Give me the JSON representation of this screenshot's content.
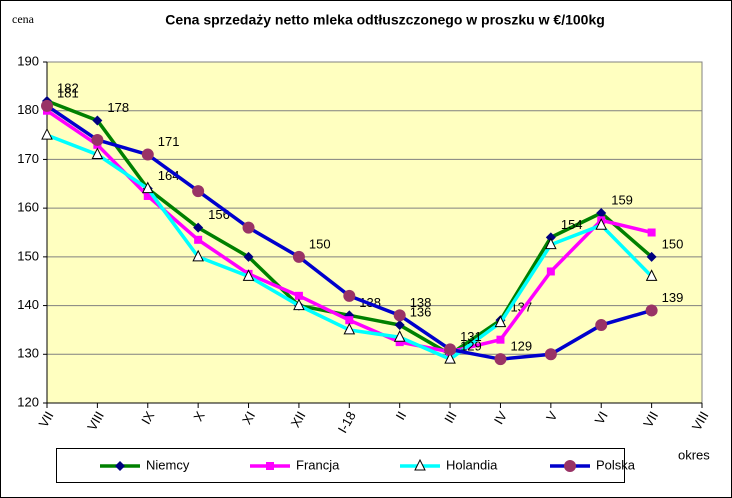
{
  "chart_data": {
    "type": "line",
    "title": "Cena sprzedaży netto mleka odtłuszczonego w proszku w €/100kg",
    "y_label": "cena",
    "x_label": "okres",
    "categories": [
      "VII",
      "VIII",
      "IX",
      "X",
      "XI",
      "XII",
      "I-18",
      "II",
      "III",
      "IV",
      "V",
      "VI",
      "VII",
      "VIII"
    ],
    "ylim": [
      120,
      190
    ],
    "yticks": [
      120,
      130,
      140,
      150,
      160,
      170,
      180,
      190
    ],
    "grid": true,
    "series": [
      {
        "name": "Niemcy",
        "color": "#008000",
        "marker": "diamond",
        "marker_color": "#000080",
        "values": [
          182,
          178,
          164,
          156,
          150,
          140,
          138,
          136,
          130,
          137,
          154,
          159,
          150,
          null
        ],
        "value_labels": [
          "182",
          "178",
          "164",
          "156",
          null,
          null,
          "138",
          "136",
          null,
          "137",
          "154",
          "159",
          "150",
          null
        ]
      },
      {
        "name": "Francja",
        "color": "#ff00ff",
        "marker": "square",
        "marker_color": "#ff00ff",
        "values": [
          180,
          173,
          162.5,
          153.5,
          146.5,
          142,
          137,
          132.5,
          130.5,
          133,
          147,
          157.5,
          155,
          null
        ]
      },
      {
        "name": "Holandia",
        "color": "#00ffff",
        "marker": "triangle",
        "marker_color": "#000000",
        "values": [
          175,
          171,
          164,
          150,
          146,
          140,
          135,
          133.5,
          129,
          136.5,
          152.5,
          156.5,
          146,
          null
        ],
        "value_labels": [
          null,
          null,
          null,
          null,
          null,
          null,
          null,
          null,
          "129",
          null,
          null,
          null,
          null,
          null
        ]
      },
      {
        "name": "Polska",
        "color": "#0000cc",
        "marker": "circle",
        "marker_color": "#993366",
        "values": [
          181,
          174,
          171,
          163.5,
          156,
          150,
          142,
          138,
          131,
          129,
          130,
          136,
          139,
          null
        ],
        "value_labels": [
          "181",
          null,
          "171",
          null,
          null,
          "150",
          null,
          "138",
          "131",
          "129",
          null,
          null,
          "139",
          null
        ]
      }
    ]
  }
}
